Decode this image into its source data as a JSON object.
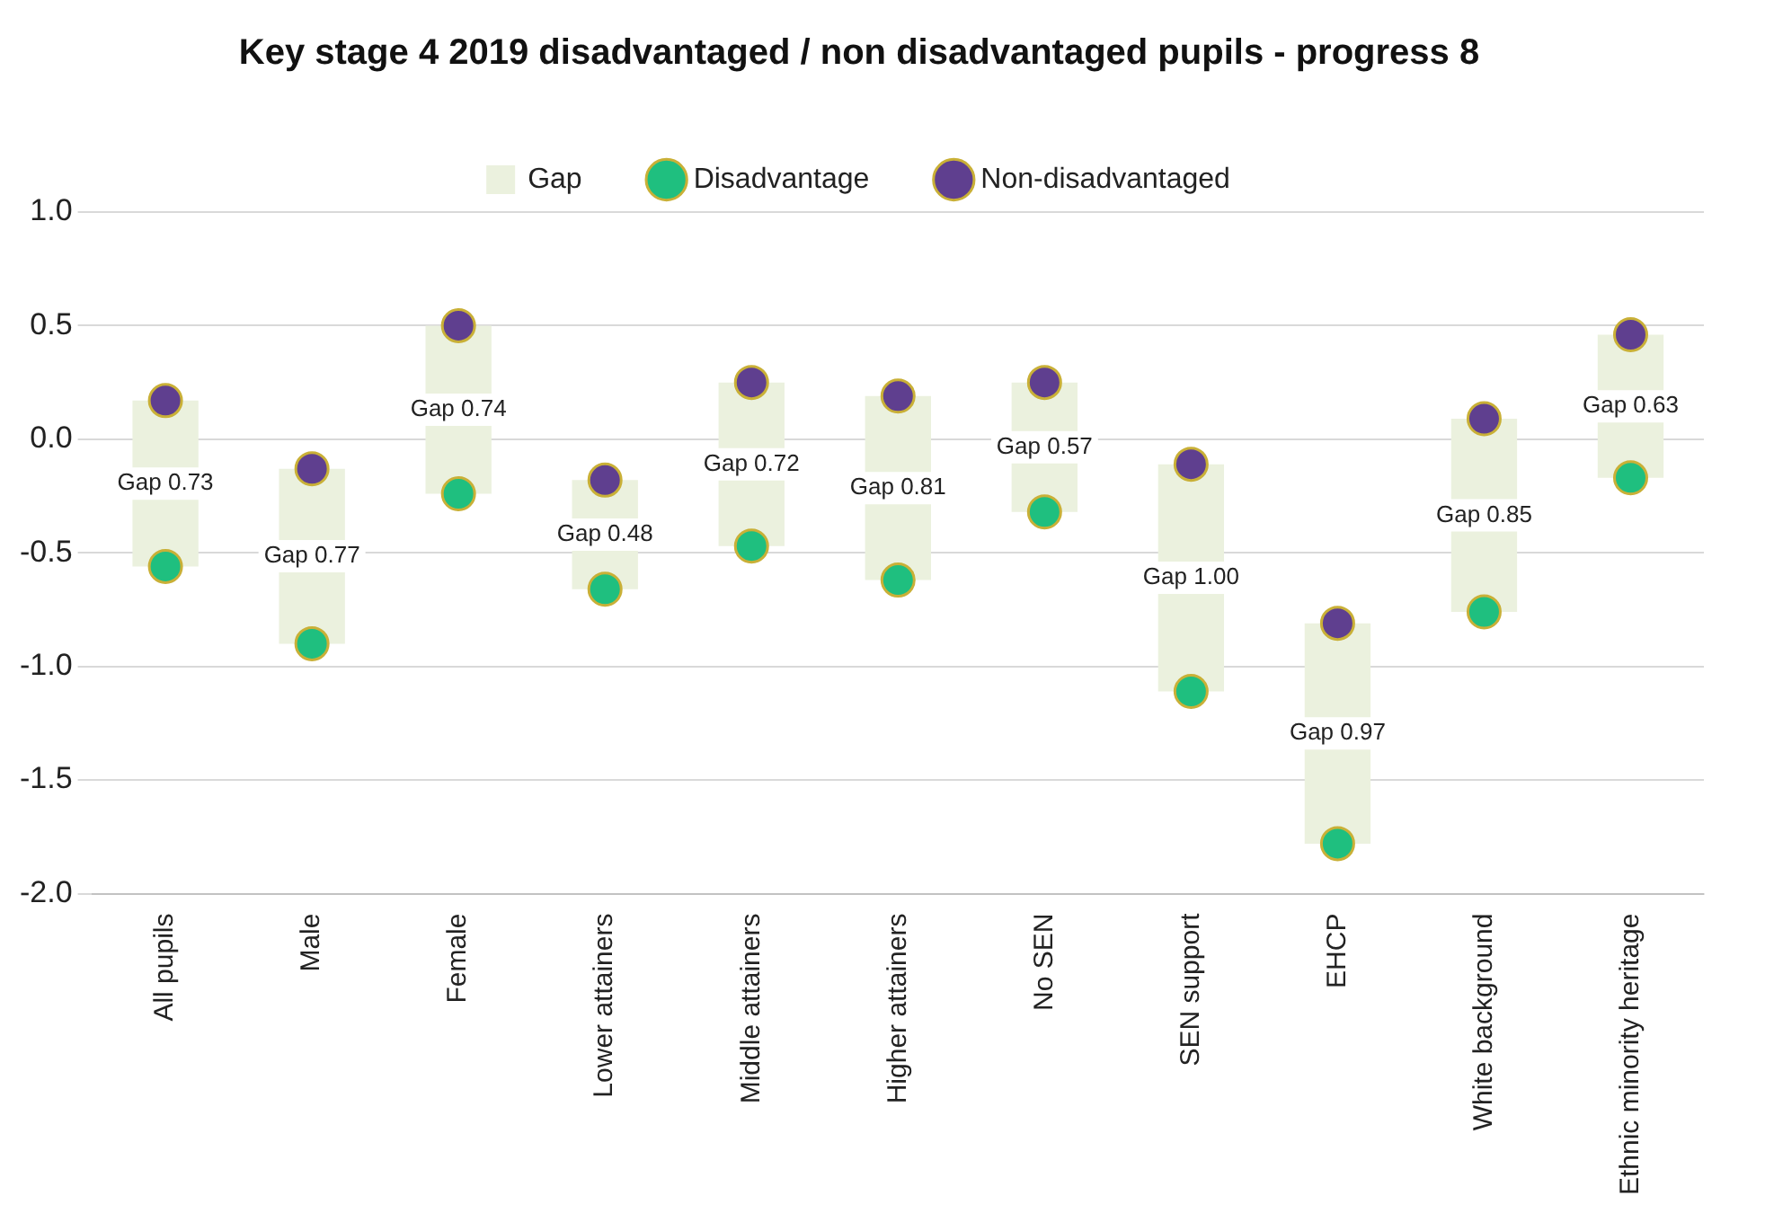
{
  "chart_data": {
    "type": "bar",
    "title": "Key stage 4 2019 disadvantaged / non disadvantaged pupils - progress 8",
    "categories": [
      "All pupils",
      "Male",
      "Female",
      "Lower attainers",
      "Middle attainers",
      "Higher attainers",
      "No SEN",
      "SEN support",
      "EHCP",
      "White background",
      "Ethnic minority heritage"
    ],
    "series": [
      {
        "name": "Gap",
        "color": "#ebf1de",
        "base": [
          -0.56,
          -0.9,
          -0.24,
          -0.66,
          -0.47,
          -0.62,
          -0.32,
          -1.11,
          -1.78,
          -0.76,
          -0.17
        ],
        "values": [
          0.73,
          0.77,
          0.74,
          0.48,
          0.72,
          0.81,
          0.57,
          1.0,
          0.97,
          0.85,
          0.63
        ],
        "value_labels": [
          "Gap 0.73",
          "Gap 0.77",
          "Gap 0.74",
          "Gap 0.48",
          "Gap 0.72",
          "Gap 0.81",
          "Gap 0.57",
          "Gap 1.00",
          "Gap 0.97",
          "Gap 0.85",
          "Gap 0.63"
        ]
      },
      {
        "name": "Disadvantage",
        "type": "scatter",
        "color": "#1fbf7f",
        "values": [
          -0.56,
          -0.9,
          -0.24,
          -0.66,
          -0.47,
          -0.62,
          -0.32,
          -1.11,
          -1.78,
          -0.76,
          -0.17
        ]
      },
      {
        "name": "Non-disadvantaged",
        "type": "scatter",
        "color": "#5f3f8f",
        "values": [
          0.17,
          -0.13,
          0.5,
          -0.18,
          0.25,
          0.19,
          0.25,
          -0.11,
          -0.81,
          0.09,
          0.46
        ]
      }
    ],
    "ylim": [
      -2,
      1
    ],
    "yticks": [
      {
        "value": -2,
        "label": "-2.0"
      },
      {
        "value": -1.5,
        "label": "-1.5"
      },
      {
        "value": -1,
        "label": "-1.0"
      },
      {
        "value": -0.5,
        "label": "-0.5"
      },
      {
        "value": 0,
        "label": "0.0"
      },
      {
        "value": 0.5,
        "label": "0.5"
      },
      {
        "value": 1,
        "label": "1.0"
      }
    ],
    "grid": "y",
    "legend": "top",
    "marker": "circle"
  }
}
